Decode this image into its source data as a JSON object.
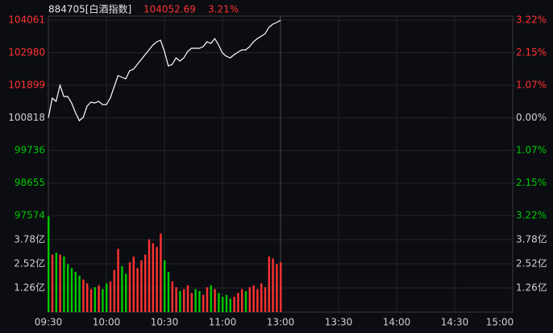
{
  "header": {
    "code": "884705[白酒指数]",
    "price": "104052.69",
    "change": "3.21%"
  },
  "chart_data": [
    {
      "type": "line",
      "color": "#ffffff",
      "up_color": "#ff3232",
      "flat_color": "#d0d0d0",
      "down_color": "#00c800",
      "x": [
        0,
        2,
        4,
        6,
        8,
        10,
        12,
        14,
        16,
        18,
        20,
        22,
        24,
        26,
        28,
        30,
        32,
        34,
        36,
        38,
        40,
        42,
        44,
        46,
        48,
        50,
        52,
        54,
        56,
        58,
        60,
        62,
        64,
        66,
        68,
        70,
        72,
        74,
        76,
        78,
        80,
        82,
        84,
        86,
        88,
        90,
        92,
        94,
        96,
        98,
        100,
        102,
        104,
        106,
        108,
        110,
        112,
        114,
        116,
        118,
        120
      ],
      "values": [
        100818,
        101471,
        101364,
        101898,
        101524,
        101524,
        101311,
        100991,
        100724,
        100830,
        101204,
        101338,
        101311,
        101364,
        101258,
        101258,
        101471,
        101845,
        102219,
        102165,
        102112,
        102379,
        102432,
        102593,
        102753,
        102913,
        103073,
        103233,
        103340,
        103394,
        103020,
        102539,
        102593,
        102806,
        102700,
        102806,
        103020,
        103126,
        103126,
        103126,
        103180,
        103340,
        103287,
        103447,
        103233,
        102966,
        102860,
        102806,
        102913,
        102993,
        103073,
        103073,
        103180,
        103340,
        103447,
        103527,
        103607,
        103821,
        103928,
        103981,
        104052.69
      ],
      "xlim": [
        0,
        240
      ],
      "ylim": [
        97574,
        104061
      ],
      "yticks": [
        104061,
        102980,
        101899,
        100818,
        99736,
        98655,
        97574
      ],
      "y2lim": [
        -3.22,
        3.22
      ],
      "y2ticks": [
        {
          "value": 3.22,
          "label": "3.22%"
        },
        {
          "value": 2.15,
          "label": "2.15%"
        },
        {
          "value": 1.07,
          "label": "1.07%"
        },
        {
          "value": 0,
          "label": "0.00%"
        },
        {
          "value": -1.07,
          "label": "1.07%"
        },
        {
          "value": -2.15,
          "label": "2.15%"
        },
        {
          "value": -3.22,
          "label": "3.22%"
        }
      ],
      "grid": true
    },
    {
      "type": "bar",
      "up_color": "#ff3232",
      "down_color": "#00c800",
      "label_color": "#d0d0d0",
      "values": [
        5.0,
        3.0,
        3.1,
        3.0,
        2.9,
        2.5,
        2.3,
        2.1,
        1.9,
        1.7,
        1.5,
        1.2,
        1.3,
        1.4,
        1.2,
        1.5,
        1.6,
        2.2,
        3.3,
        2.4,
        2.0,
        2.6,
        2.9,
        2.3,
        2.7,
        3.0,
        3.8,
        3.6,
        3.4,
        4.1,
        2.7,
        2.1,
        1.6,
        1.3,
        1.1,
        1.2,
        1.4,
        1.0,
        1.2,
        1.1,
        0.9,
        1.3,
        1.4,
        1.2,
        1.0,
        0.8,
        0.9,
        0.7,
        0.8,
        1.0,
        1.2,
        1.1,
        1.3,
        1.4,
        1.2,
        1.5,
        1.3,
        2.9,
        2.8,
        2.5,
        2.6
      ],
      "ylim": [
        0,
        5.04
      ],
      "yticks": [
        {
          "value": 3.78,
          "label": "3.78亿"
        },
        {
          "value": 2.52,
          "label": "2.52亿"
        },
        {
          "value": 1.26,
          "label": "1.26亿"
        }
      ],
      "xlim": [
        0,
        240
      ],
      "xticks": [
        {
          "value": 0,
          "label": "09:30"
        },
        {
          "value": 30,
          "label": "10:00"
        },
        {
          "value": 60,
          "label": "10:30"
        },
        {
          "value": 90,
          "label": "11:00"
        },
        {
          "value": 120,
          "label": "13:00"
        },
        {
          "value": 150,
          "label": "13:30"
        },
        {
          "value": 180,
          "label": "14:00"
        },
        {
          "value": 210,
          "label": "14:30"
        },
        {
          "value": 240,
          "label": "15:00"
        }
      ],
      "grid": true
    }
  ]
}
